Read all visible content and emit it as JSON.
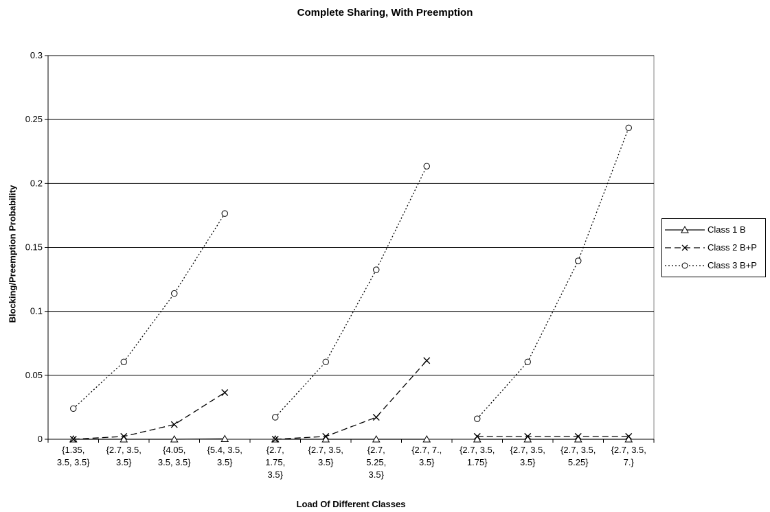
{
  "chart_data": {
    "type": "line",
    "title": "Complete Sharing, With Preemption",
    "xlabel": "Load Of Different Classes",
    "ylabel": "Blocking/Preemption Probability",
    "ylim": [
      0,
      0.3
    ],
    "yticks": [
      "0",
      "0.05",
      "0.1",
      "0.15",
      "0.2",
      "0.25",
      "0.3"
    ],
    "grid": true,
    "legend_position": "right",
    "categories": [
      [
        "{1.35,",
        "3.5, 3.5}"
      ],
      [
        "{2.7, 3.5,",
        "3.5}"
      ],
      [
        "{4.05,",
        "3.5, 3.5}"
      ],
      [
        "{5.4, 3.5,",
        "3.5}"
      ],
      [
        "{2.7,",
        "1.75,",
        "3.5}"
      ],
      [
        "{2.7, 3.5,",
        "3.5}"
      ],
      [
        "{2.7,",
        "5.25,",
        "3.5}"
      ],
      [
        "{2.7, 7.,",
        "3.5}"
      ],
      [
        "{2.7, 3.5,",
        "1.75}"
      ],
      [
        "{2.7, 3.5,",
        "3.5}"
      ],
      [
        "{2.7, 3.5,",
        "5.25}"
      ],
      [
        "{2.7, 3.5,",
        "7.}"
      ]
    ],
    "segments": [
      [
        0,
        3
      ],
      [
        4,
        7
      ],
      [
        8,
        11
      ]
    ],
    "series": [
      {
        "name": "Class 1 B",
        "marker": "triangle",
        "dash": "solid",
        "values": [
          0,
          0,
          0,
          0.0003,
          0,
          0,
          0,
          0,
          0,
          0,
          0,
          0
        ]
      },
      {
        "name": "Class 2 B+P",
        "marker": "x",
        "dash": "dashed",
        "values": [
          0,
          0.0022,
          0.0115,
          0.0365,
          0,
          0.0022,
          0.0172,
          0.0615,
          0.0022,
          0.0022,
          0.0022,
          0.0022
        ]
      },
      {
        "name": "Class 3 B+P",
        "marker": "circle",
        "dash": "dotted",
        "values": [
          0.024,
          0.0605,
          0.114,
          0.1765,
          0.0172,
          0.0605,
          0.1325,
          0.2135,
          0.016,
          0.0605,
          0.1395,
          0.2435
        ]
      }
    ]
  }
}
